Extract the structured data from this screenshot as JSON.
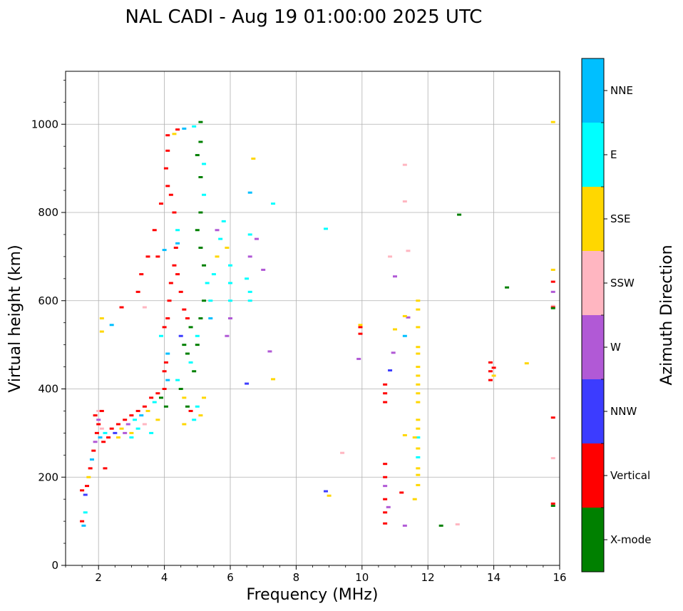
{
  "chart_data": {
    "type": "scatter",
    "title": "NAL CADI - Aug 19 01:00:00 2025 UTC",
    "xlabel": "Frequency (MHz)",
    "ylabel": "Virtual height (km)",
    "xlim": [
      1,
      16
    ],
    "ylim": [
      0,
      1120
    ],
    "xticks": [
      2,
      4,
      6,
      8,
      10,
      12,
      14,
      16
    ],
    "yticks": [
      0,
      200,
      400,
      600,
      800,
      1000
    ],
    "grid": true,
    "colorbar": {
      "title": "Azimuth Direction",
      "categories": [
        {
          "label": "X-mode",
          "color": "#008000"
        },
        {
          "label": "Vertical",
          "color": "#ff0000"
        },
        {
          "label": "NNW",
          "color": "#3c3cff"
        },
        {
          "label": "W",
          "color": "#b159d6"
        },
        {
          "label": "SSW",
          "color": "#ffb6c1"
        },
        {
          "label": "SSE",
          "color": "#ffd700"
        },
        {
          "label": "E",
          "color": "#00ffff"
        },
        {
          "label": "NNE",
          "color": "#00bfff"
        }
      ]
    },
    "points": [
      [
        1.5,
        100,
        "Vertical"
      ],
      [
        1.55,
        90,
        "NNE"
      ],
      [
        1.6,
        120,
        "E"
      ],
      [
        1.5,
        170,
        "Vertical"
      ],
      [
        1.6,
        160,
        "NNW"
      ],
      [
        1.65,
        180,
        "Vertical"
      ],
      [
        1.7,
        200,
        "SSE"
      ],
      [
        1.75,
        220,
        "Vertical"
      ],
      [
        1.8,
        240,
        "NNE"
      ],
      [
        1.85,
        260,
        "Vertical"
      ],
      [
        1.9,
        280,
        "W"
      ],
      [
        1.95,
        300,
        "Vertical"
      ],
      [
        2.0,
        320,
        "Vertical"
      ],
      [
        2.05,
        290,
        "NNE"
      ],
      [
        2.1,
        310,
        "SSW"
      ],
      [
        2.15,
        280,
        "Vertical"
      ],
      [
        2.2,
        300,
        "E"
      ],
      [
        2.3,
        290,
        "Vertical"
      ],
      [
        2.4,
        310,
        "Vertical"
      ],
      [
        2.5,
        300,
        "NNW"
      ],
      [
        2.6,
        320,
        "Vertical"
      ],
      [
        2.7,
        310,
        "SSE"
      ],
      [
        2.8,
        330,
        "Vertical"
      ],
      [
        2.9,
        320,
        "W"
      ],
      [
        3.0,
        340,
        "Vertical"
      ],
      [
        3.1,
        330,
        "E"
      ],
      [
        3.2,
        350,
        "Vertical"
      ],
      [
        3.3,
        340,
        "NNE"
      ],
      [
        3.4,
        360,
        "Vertical"
      ],
      [
        3.5,
        350,
        "SSE"
      ],
      [
        3.6,
        380,
        "Vertical"
      ],
      [
        3.7,
        370,
        "E"
      ],
      [
        3.8,
        390,
        "Vertical"
      ],
      [
        3.9,
        380,
        "X-mode"
      ],
      [
        4.0,
        400,
        "Vertical"
      ],
      [
        4.05,
        360,
        "X-mode"
      ],
      [
        4.1,
        420,
        "NNE"
      ],
      [
        3.0,
        300,
        "SSE"
      ],
      [
        3.2,
        310,
        "E"
      ],
      [
        3.4,
        320,
        "SSW"
      ],
      [
        3.6,
        300,
        "E"
      ],
      [
        3.8,
        330,
        "SSE"
      ],
      [
        2.6,
        290,
        "SSE"
      ],
      [
        2.8,
        300,
        "W"
      ],
      [
        3.0,
        290,
        "E"
      ],
      [
        4.0,
        440,
        "Vertical"
      ],
      [
        4.05,
        460,
        "Vertical"
      ],
      [
        4.1,
        480,
        "NNE"
      ],
      [
        3.9,
        520,
        "E"
      ],
      [
        4.0,
        540,
        "Vertical"
      ],
      [
        4.1,
        560,
        "Vertical"
      ],
      [
        4.15,
        600,
        "Vertical"
      ],
      [
        4.2,
        640,
        "Vertical"
      ],
      [
        4.3,
        680,
        "Vertical"
      ],
      [
        4.35,
        720,
        "Vertical"
      ],
      [
        4.4,
        760,
        "E"
      ],
      [
        4.3,
        800,
        "Vertical"
      ],
      [
        4.2,
        840,
        "Vertical"
      ],
      [
        4.1,
        860,
        "Vertical"
      ],
      [
        4.05,
        900,
        "Vertical"
      ],
      [
        4.1,
        940,
        "Vertical"
      ],
      [
        4.1,
        975,
        "Vertical"
      ],
      [
        4.3,
        978,
        "SSE"
      ],
      [
        4.4,
        988,
        "Vertical"
      ],
      [
        4.6,
        990,
        "NNE"
      ],
      [
        4.9,
        995,
        "E"
      ],
      [
        5.1,
        1005,
        "X-mode"
      ],
      [
        3.2,
        620,
        "Vertical"
      ],
      [
        3.3,
        660,
        "Vertical"
      ],
      [
        3.5,
        700,
        "Vertical"
      ],
      [
        3.7,
        760,
        "Vertical"
      ],
      [
        3.9,
        820,
        "Vertical"
      ],
      [
        3.8,
        700,
        "Vertical"
      ],
      [
        4.0,
        715,
        "NNE"
      ],
      [
        4.4,
        730,
        "NNE"
      ],
      [
        4.4,
        660,
        "Vertical"
      ],
      [
        4.5,
        620,
        "Vertical"
      ],
      [
        4.6,
        580,
        "Vertical"
      ],
      [
        4.7,
        560,
        "Vertical"
      ],
      [
        4.8,
        540,
        "X-mode"
      ],
      [
        4.5,
        520,
        "NNW"
      ],
      [
        4.6,
        500,
        "X-mode"
      ],
      [
        4.7,
        480,
        "X-mode"
      ],
      [
        4.8,
        460,
        "E"
      ],
      [
        4.9,
        440,
        "X-mode"
      ],
      [
        4.4,
        420,
        "E"
      ],
      [
        4.5,
        400,
        "X-mode"
      ],
      [
        4.6,
        380,
        "SSE"
      ],
      [
        4.7,
        360,
        "X-mode"
      ],
      [
        4.8,
        350,
        "Vertical"
      ],
      [
        5.0,
        500,
        "X-mode"
      ],
      [
        5.0,
        520,
        "E"
      ],
      [
        5.1,
        560,
        "X-mode"
      ],
      [
        5.2,
        600,
        "X-mode"
      ],
      [
        5.3,
        640,
        "E"
      ],
      [
        5.2,
        680,
        "X-mode"
      ],
      [
        5.1,
        720,
        "X-mode"
      ],
      [
        5.0,
        760,
        "X-mode"
      ],
      [
        5.1,
        800,
        "X-mode"
      ],
      [
        5.2,
        840,
        "E"
      ],
      [
        5.1,
        880,
        "X-mode"
      ],
      [
        5.2,
        910,
        "E"
      ],
      [
        5.0,
        930,
        "X-mode"
      ],
      [
        5.1,
        960,
        "X-mode"
      ],
      [
        5.4,
        600,
        "E"
      ],
      [
        5.4,
        560,
        "NNE"
      ],
      [
        5.5,
        660,
        "E"
      ],
      [
        5.6,
        700,
        "SSE"
      ],
      [
        5.7,
        740,
        "E"
      ],
      [
        5.8,
        780,
        "E"
      ],
      [
        5.6,
        760,
        "W"
      ],
      [
        5.9,
        720,
        "SSE"
      ],
      [
        6.0,
        680,
        "E"
      ],
      [
        6.0,
        640,
        "E"
      ],
      [
        5.9,
        520,
        "W"
      ],
      [
        6.0,
        560,
        "W"
      ],
      [
        6.0,
        600,
        "E"
      ],
      [
        6.5,
        650,
        "E"
      ],
      [
        6.6,
        700,
        "W"
      ],
      [
        6.6,
        750,
        "E"
      ],
      [
        6.6,
        600,
        "E"
      ],
      [
        6.6,
        620,
        "E"
      ],
      [
        6.8,
        740,
        "W"
      ],
      [
        6.6,
        845,
        "NNE"
      ],
      [
        6.7,
        922,
        "SSE"
      ],
      [
        6.5,
        412,
        "NNW"
      ],
      [
        7.0,
        670,
        "W"
      ],
      [
        7.2,
        485,
        "W"
      ],
      [
        7.3,
        422,
        "SSE"
      ],
      [
        7.3,
        820,
        "E"
      ],
      [
        5.0,
        360,
        "E"
      ],
      [
        5.2,
        380,
        "SSE"
      ],
      [
        5.1,
        340,
        "SSE"
      ],
      [
        4.6,
        320,
        "SSE"
      ],
      [
        4.9,
        330,
        "E"
      ],
      [
        2.2,
        220,
        "Vertical"
      ],
      [
        2.1,
        530,
        "SSE"
      ],
      [
        2.1,
        560,
        "SSE"
      ],
      [
        2.4,
        545,
        "NNE"
      ],
      [
        2.7,
        585,
        "Vertical"
      ],
      [
        3.4,
        585,
        "SSW"
      ],
      [
        2.0,
        350,
        "SSW"
      ],
      [
        1.9,
        340,
        "Vertical"
      ],
      [
        2.1,
        350,
        "Vertical"
      ],
      [
        2.0,
        330,
        "W"
      ],
      [
        8.9,
        763,
        "E"
      ],
      [
        8.9,
        168,
        "NNW"
      ],
      [
        9.0,
        158,
        "SSE"
      ],
      [
        9.4,
        255,
        "SSW"
      ],
      [
        9.9,
        468,
        "W"
      ],
      [
        9.95,
        540,
        "Vertical"
      ],
      [
        9.95,
        525,
        "Vertical"
      ],
      [
        9.95,
        545,
        "SSE"
      ],
      [
        10.7,
        180,
        "W"
      ],
      [
        10.7,
        200,
        "Vertical"
      ],
      [
        10.7,
        230,
        "Vertical"
      ],
      [
        10.7,
        150,
        "Vertical"
      ],
      [
        10.7,
        120,
        "Vertical"
      ],
      [
        10.7,
        95,
        "Vertical"
      ],
      [
        10.8,
        132,
        "W"
      ],
      [
        10.7,
        370,
        "Vertical"
      ],
      [
        10.7,
        390,
        "Vertical"
      ],
      [
        10.7,
        410,
        "Vertical"
      ],
      [
        10.85,
        442,
        "NNW"
      ],
      [
        10.95,
        482,
        "W"
      ],
      [
        11.0,
        535,
        "SSE"
      ],
      [
        11.0,
        655,
        "W"
      ],
      [
        10.85,
        700,
        "SSW"
      ],
      [
        11.2,
        165,
        "Vertical"
      ],
      [
        11.3,
        90,
        "W"
      ],
      [
        11.3,
        295,
        "SSE"
      ],
      [
        11.4,
        562,
        "W"
      ],
      [
        11.3,
        520,
        "NNE"
      ],
      [
        11.3,
        565,
        "SSE"
      ],
      [
        11.3,
        825,
        "SSW"
      ],
      [
        11.3,
        908,
        "SSW"
      ],
      [
        11.4,
        713,
        "SSW"
      ],
      [
        11.7,
        600,
        "SSE"
      ],
      [
        11.7,
        580,
        "SSE"
      ],
      [
        11.7,
        540,
        "SSE"
      ],
      [
        11.7,
        495,
        "SSE"
      ],
      [
        11.7,
        480,
        "SSE"
      ],
      [
        11.7,
        450,
        "SSE"
      ],
      [
        11.7,
        430,
        "SSE"
      ],
      [
        11.7,
        410,
        "SSE"
      ],
      [
        11.7,
        390,
        "SSE"
      ],
      [
        11.7,
        370,
        "SSE"
      ],
      [
        11.7,
        330,
        "SSE"
      ],
      [
        11.7,
        310,
        "SSE"
      ],
      [
        11.7,
        290,
        "E"
      ],
      [
        11.7,
        245,
        "E"
      ],
      [
        11.7,
        220,
        "SSE"
      ],
      [
        11.7,
        205,
        "SSE"
      ],
      [
        11.7,
        182,
        "SSE"
      ],
      [
        11.6,
        150,
        "SSE"
      ],
      [
        11.7,
        265,
        "SSE"
      ],
      [
        11.6,
        290,
        "SSE"
      ],
      [
        12.4,
        90,
        "X-mode"
      ],
      [
        12.9,
        93,
        "SSW"
      ],
      [
        12.95,
        795,
        "X-mode"
      ],
      [
        13.9,
        460,
        "Vertical"
      ],
      [
        13.9,
        440,
        "Vertical"
      ],
      [
        13.9,
        420,
        "Vertical"
      ],
      [
        14.0,
        430,
        "SSE"
      ],
      [
        14.0,
        448,
        "Vertical"
      ],
      [
        14.4,
        630,
        "X-mode"
      ],
      [
        15.0,
        458,
        "SSE"
      ],
      [
        15.8,
        1005,
        "SSE"
      ],
      [
        15.8,
        670,
        "SSE"
      ],
      [
        15.8,
        643,
        "Vertical"
      ],
      [
        15.8,
        620,
        "W"
      ],
      [
        15.8,
        588,
        "SSW"
      ],
      [
        15.8,
        585,
        "Vertical"
      ],
      [
        15.8,
        583,
        "X-mode"
      ],
      [
        15.8,
        335,
        "Vertical"
      ],
      [
        15.8,
        243,
        "SSW"
      ],
      [
        15.8,
        140,
        "Vertical"
      ],
      [
        15.8,
        135,
        "X-mode"
      ]
    ]
  }
}
